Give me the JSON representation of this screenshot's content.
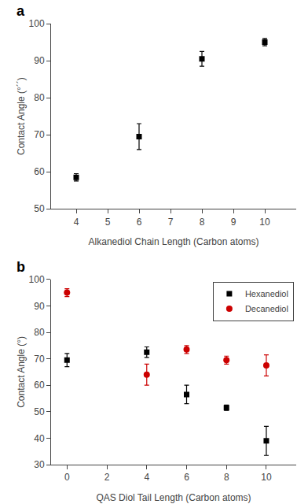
{
  "chart_data": [
    {
      "type": "scatter",
      "x": [
        4,
        6,
        8,
        10
      ],
      "series": [
        {
          "color": "#000000",
          "marker": "square",
          "values": [
            58.5,
            69.5,
            90.5,
            95.0
          ],
          "yerr": [
            1.0,
            3.5,
            2.0,
            1.0
          ]
        }
      ],
      "x_label": "Alkanediol Chain Length (Carbon atoms)",
      "y_label": "Contact Angle (°´´)",
      "xlim": [
        3.2,
        11.0
      ],
      "ylim": [
        50,
        100
      ],
      "xticks": [
        4,
        5,
        6,
        7,
        8,
        9,
        10
      ],
      "yticks": [
        50,
        60,
        70,
        80,
        90,
        100
      ],
      "annotations": [
        "a"
      ],
      "grid": false
    },
    {
      "type": "scatter",
      "x": [
        0,
        4,
        6,
        8,
        10
      ],
      "series": [
        {
          "name": "Hexanediol",
          "color": "#000000",
          "marker": "square",
          "values": [
            69.5,
            72.5,
            56.5,
            51.5,
            39.0
          ],
          "yerr": [
            2.5,
            2.0,
            3.5,
            1.0,
            5.5
          ]
        },
        {
          "name": "Decanediol",
          "color": "#cc0000",
          "marker": "circle",
          "values": [
            95.0,
            64.0,
            73.5,
            69.5,
            67.5
          ],
          "yerr": [
            1.5,
            4.0,
            1.5,
            1.5,
            4.0
          ]
        }
      ],
      "x_label": "QAS Diol Tail Length (Carbon atoms)",
      "y_label": "Contact Angle (°)",
      "xlim": [
        -0.8,
        11.5
      ],
      "ylim": [
        30,
        100
      ],
      "xticks": [
        0,
        2,
        4,
        6,
        8,
        10
      ],
      "yticks": [
        30,
        40,
        50,
        60,
        70,
        80,
        90,
        100
      ],
      "annotations": [
        "b"
      ],
      "legend": "upper right",
      "grid": false
    }
  ]
}
